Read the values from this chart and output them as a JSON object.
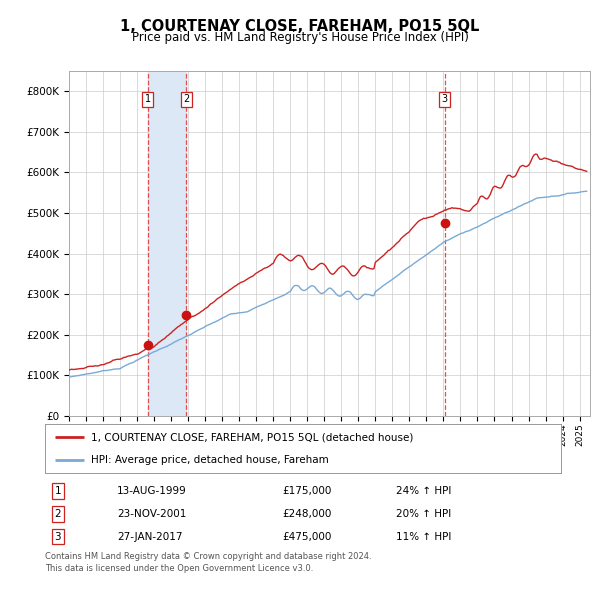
{
  "title": "1, COURTENAY CLOSE, FAREHAM, PO15 5QL",
  "subtitle": "Price paid vs. HM Land Registry's House Price Index (HPI)",
  "legend_line1": "1, COURTENAY CLOSE, FAREHAM, PO15 5QL (detached house)",
  "legend_line2": "HPI: Average price, detached house, Fareham",
  "sale1_date": "13-AUG-1999",
  "sale1_price": 175000,
  "sale1_hpi": "24% ↑ HPI",
  "sale2_date": "23-NOV-2001",
  "sale2_price": 248000,
  "sale2_hpi": "20% ↑ HPI",
  "sale3_date": "27-JAN-2017",
  "sale3_price": 475000,
  "sale3_hpi": "11% ↑ HPI",
  "footnote1": "Contains HM Land Registry data © Crown copyright and database right 2024.",
  "footnote2": "This data is licensed under the Open Government Licence v3.0.",
  "hpi_color": "#7aaad4",
  "price_color": "#cc2222",
  "sale_dot_color": "#cc1111",
  "span_color": "#dce8f5",
  "grid_color": "#cccccc",
  "ylim": [
    0,
    850000
  ],
  "yticks": [
    0,
    100000,
    200000,
    300000,
    400000,
    500000,
    600000,
    700000,
    800000
  ],
  "xlim_start": 1995.3,
  "xlim_end": 2025.6,
  "sale1_year": 1999.619,
  "sale2_year": 2001.896,
  "sale3_year": 2017.074
}
